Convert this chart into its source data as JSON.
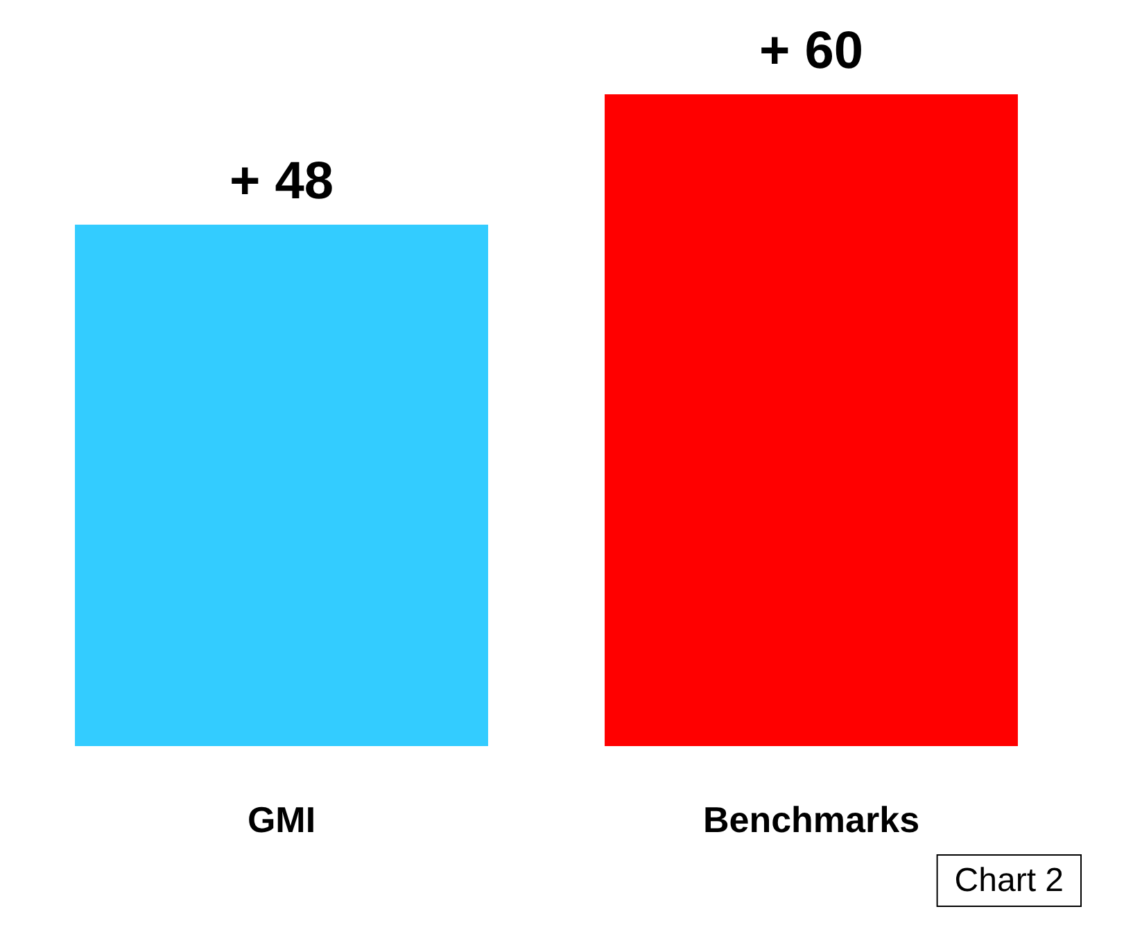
{
  "chart_data": {
    "type": "bar",
    "categories": [
      "GMI",
      "Benchmarks"
    ],
    "values": [
      48,
      60
    ],
    "colors": [
      "#33ccff",
      "#ff0000"
    ],
    "value_labels": [
      "+ 48",
      "+ 60"
    ],
    "annotations": [
      "Chart 2"
    ]
  }
}
